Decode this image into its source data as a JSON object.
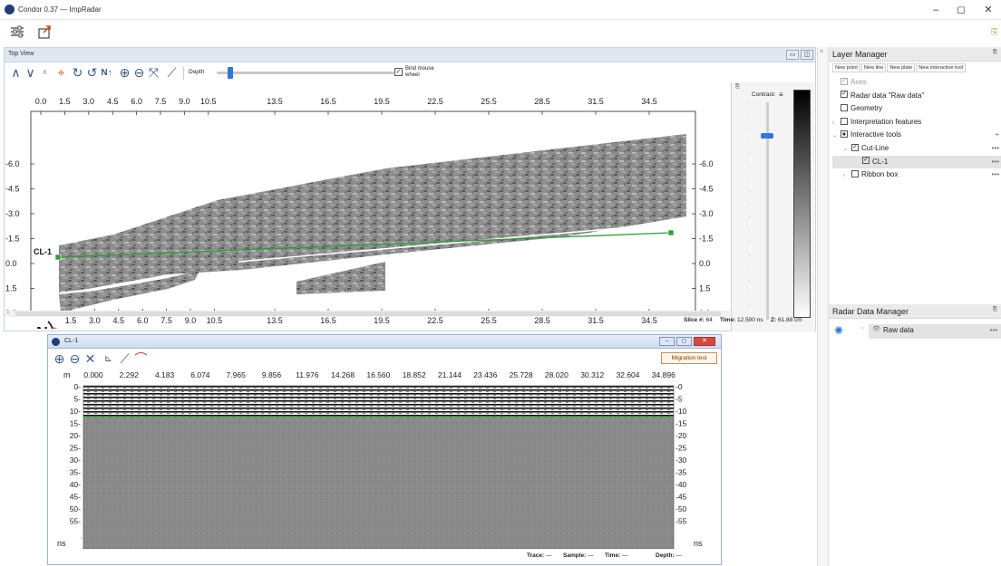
{
  "window": {
    "title": "Condor 0.37 — ImpRadar",
    "controls": [
      "–",
      "◻",
      "✕"
    ]
  },
  "top_view": {
    "title": "Top View",
    "depth_label": "Depth",
    "bind_label_1": "Bind mouse",
    "bind_label_2": "wheel",
    "bind_checked": true,
    "depth_slider_value": 0.06,
    "contrast_label": "Contrast:",
    "contrast_level": 0.14,
    "north_label": "N",
    "cut_line_label": "CL-1",
    "x_ticks_top_left": [
      "0.0",
      "1.5",
      "3.0",
      "4.5",
      "6.0",
      "7.5",
      "9.0",
      "10.5"
    ],
    "x_ticks": [
      "13.5",
      "16.5",
      "19.5",
      "22.5",
      "25.5",
      "28.5",
      "31.5",
      "34.5"
    ],
    "x_ticks_bottom_left": [
      "1.5",
      "3.0",
      "4.5",
      "6.0",
      "7.5",
      "9.0",
      "10.5"
    ],
    "y_ticks_left": [
      "-6.0",
      "-4.5",
      "-3.0",
      "-1.5",
      "0.0",
      "1.5",
      "3.0"
    ],
    "y_ticks_right": [
      "-6.0",
      "-4.5",
      "-3.0",
      "-1.5",
      "0.0",
      "1.5",
      "3.0"
    ],
    "status": {
      "slice_label": "Slice #:",
      "slice_value": "64",
      "time_label": "Time:",
      "time_value": "12.500 ns",
      "z_label": "Z:",
      "z_value": "61.88 cm"
    }
  },
  "cl_window": {
    "title": "CL-1",
    "migration_button": "Migration test",
    "x_unit": "m",
    "x_ticks": [
      "0.000",
      "2.292",
      "4.183",
      "6.074",
      "7.965",
      "9.856",
      "11.976",
      "14.268",
      "16.560",
      "18.852",
      "21.144",
      "23.436",
      "25.728",
      "28.020",
      "30.312",
      "32.604",
      "34.896"
    ],
    "y_ticks": [
      "0",
      "5",
      "10",
      "15",
      "20",
      "25",
      "30",
      "35",
      "40",
      "45",
      "50",
      "55"
    ],
    "y_unit": "ns",
    "status": {
      "trace_label": "Trace:",
      "trace_value": "—",
      "sample_label": "Sample:",
      "sample_value": "—",
      "time_label": "Time:",
      "time_value": "—",
      "depth_label": "Depth:",
      "depth_value": "—"
    }
  },
  "layer_manager": {
    "title": "Layer Manager",
    "actions": [
      "New point",
      "New line",
      "New plate",
      "New interactive tool"
    ],
    "items": [
      {
        "label": "Axes",
        "checked": true,
        "disabled": true,
        "indent": 0,
        "caret": ""
      },
      {
        "label": "Radar data \"Raw data\"",
        "checked": true,
        "indent": 0,
        "caret": ""
      },
      {
        "label": "Geometry",
        "checked": false,
        "indent": 0,
        "caret": ""
      },
      {
        "label": "Interpretation features",
        "checked": false,
        "indent": 0,
        "caret": "›"
      },
      {
        "label": "Interactive tools",
        "checked": "partial",
        "indent": 0,
        "caret": "⌄"
      },
      {
        "label": "Cut-Line",
        "checked": true,
        "indent": 1,
        "caret": "⌄"
      },
      {
        "label": "CL-1",
        "checked": true,
        "indent": 2,
        "caret": "",
        "selected": true
      },
      {
        "label": "Ribbon box",
        "checked": false,
        "indent": 1,
        "caret": "›"
      }
    ],
    "add_glyph": "+",
    "more_glyph": "•••"
  },
  "radar_data_manager": {
    "title": "Radar Data Manager",
    "items": [
      {
        "label": "Raw data"
      }
    ],
    "more_glyph": "•••"
  },
  "colors": {
    "panel_header": "#dfe7f1",
    "cut_line": "#2e9e35",
    "accent_blue": "#2f78d6",
    "migration_border": "#c98f53"
  }
}
